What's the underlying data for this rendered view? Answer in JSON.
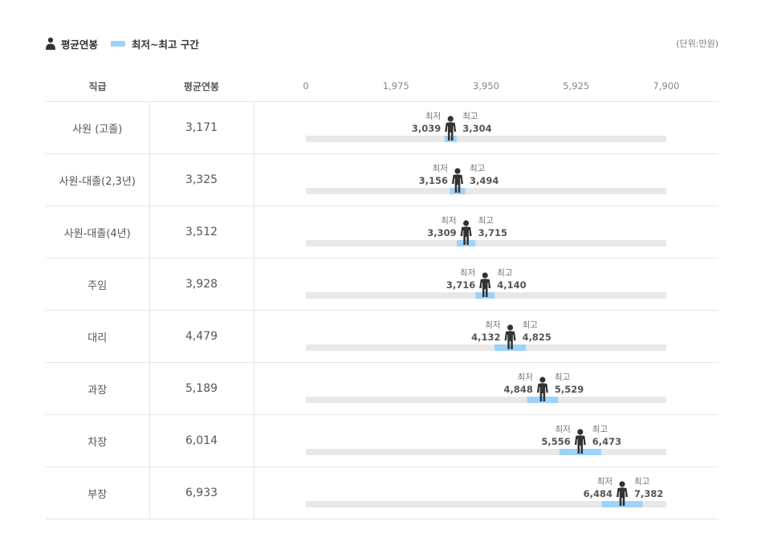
{
  "legend": {
    "avg_label": "평균연봉",
    "range_label": "최저~최고 구간"
  },
  "unit": "(단위:만원)",
  "headers": {
    "title": "직급",
    "avg": "평균연봉"
  },
  "colors": {
    "track": "#e8e8e8",
    "range": "#9dd2fb",
    "person": "#333333"
  },
  "captions": {
    "min": "최저",
    "max": "최고"
  },
  "chart_data": {
    "type": "bar",
    "orientation": "horizontal-range",
    "x_ticks": [
      "0",
      "1,975",
      "3,950",
      "5,925",
      "7,900"
    ],
    "xlim": [
      0,
      7900
    ],
    "categories": [
      "사원 (고졸)",
      "사원-대졸(2,3년)",
      "사원-대졸(4년)",
      "주임",
      "대리",
      "과장",
      "차장",
      "부장"
    ],
    "series": [
      {
        "name": "평균연봉",
        "values": [
          3171,
          3325,
          3512,
          3928,
          4479,
          5189,
          6014,
          6933
        ],
        "labels": [
          "3,171",
          "3,325",
          "3,512",
          "3,928",
          "4,479",
          "5,189",
          "6,014",
          "6,933"
        ]
      },
      {
        "name": "최저",
        "values": [
          3039,
          3156,
          3309,
          3716,
          4132,
          4848,
          5556,
          6484
        ],
        "labels": [
          "3,039",
          "3,156",
          "3,309",
          "3,716",
          "4,132",
          "4,848",
          "5,556",
          "6,484"
        ]
      },
      {
        "name": "최고",
        "values": [
          3304,
          3494,
          3715,
          4140,
          4825,
          5529,
          6473,
          7382
        ],
        "labels": [
          "3,304",
          "3,494",
          "3,715",
          "4,140",
          "4,825",
          "5,529",
          "6,473",
          "7,382"
        ]
      }
    ]
  }
}
